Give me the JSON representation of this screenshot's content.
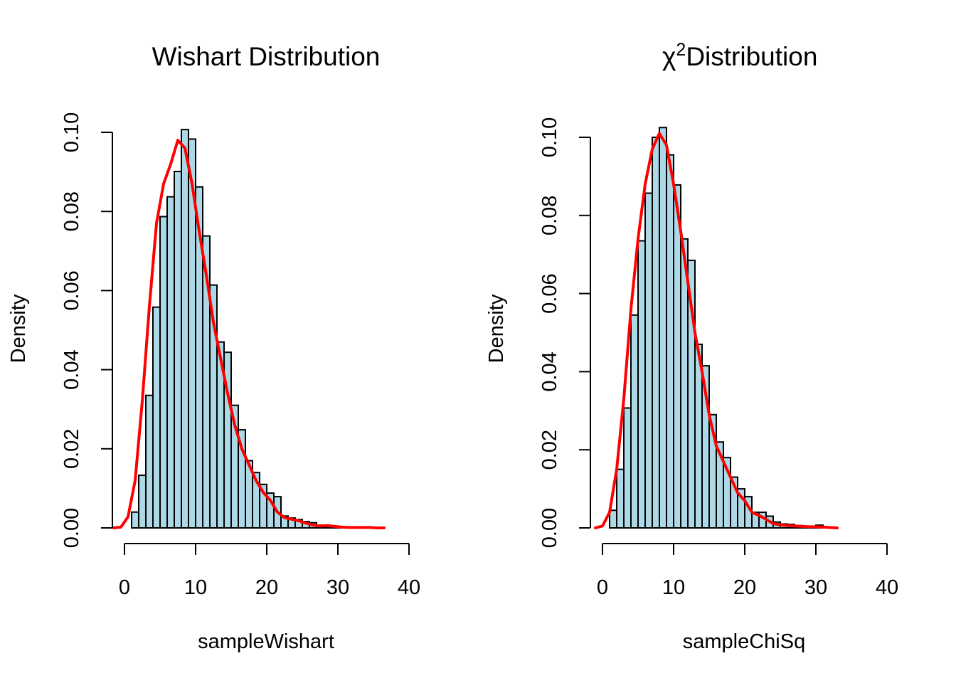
{
  "chart_data": [
    {
      "type": "bar",
      "title": "Wishart Distribution",
      "title_parts": [],
      "xlabel": "sampleWishart",
      "ylabel": "Density",
      "bin_width": 1,
      "bins_start": 0,
      "values": [
        0.0,
        0.004,
        0.0133,
        0.0335,
        0.0558,
        0.0787,
        0.0837,
        0.0901,
        0.1007,
        0.0983,
        0.0862,
        0.0738,
        0.0614,
        0.047,
        0.0444,
        0.031,
        0.0248,
        0.017,
        0.014,
        0.011,
        0.0088,
        0.0079,
        0.003,
        0.0025,
        0.0021,
        0.0016,
        0.0013,
        0.0007,
        0.0004,
        0.0003,
        0.0002,
        0.0001
      ],
      "density": {
        "color": "#ff0000",
        "x": [
          -1.5,
          -0.5,
          0.5,
          1.5,
          2.5,
          3.5,
          4.5,
          5.5,
          6.5,
          7.5,
          8.5,
          9.5,
          10.5,
          11.5,
          12.5,
          13.5,
          14.5,
          15.5,
          16.5,
          17.5,
          18.5,
          19.5,
          20.5,
          21.5,
          22.5,
          23.5,
          24.5,
          25.5,
          26.5,
          27.5,
          28.5,
          29.5,
          30.5,
          31.5,
          32.5,
          33.5,
          34.5,
          35.5,
          36.5
        ],
        "y": [
          0.0,
          0.0002,
          0.0028,
          0.012,
          0.032,
          0.056,
          0.077,
          0.087,
          0.092,
          0.098,
          0.096,
          0.087,
          0.075,
          0.064,
          0.052,
          0.043,
          0.034,
          0.026,
          0.02,
          0.016,
          0.012,
          0.009,
          0.007,
          0.004,
          0.0026,
          0.0022,
          0.0018,
          0.0012,
          0.0007,
          0.0005,
          0.0006,
          0.0004,
          0.0002,
          0.0001,
          0.0001,
          0.0001,
          0.0001,
          0.0,
          0.0
        ]
      },
      "xlim": [
        -1.5,
        36.5
      ],
      "ylim": [
        0,
        0.1
      ],
      "xticks": [
        0,
        10,
        20,
        30,
        40
      ],
      "yticks": [
        "0.00",
        "0.02",
        "0.04",
        "0.06",
        "0.08",
        "0.10"
      ],
      "bar_color": "#add8e6",
      "grid": false
    },
    {
      "type": "bar",
      "title": "Distribution",
      "title_parts": [
        "χ",
        "2"
      ],
      "xlabel": "sampleChiSq",
      "ylabel": "Density",
      "bin_width": 1,
      "bins_start": 0,
      "values": [
        0.0,
        0.0045,
        0.015,
        0.0307,
        0.0545,
        0.0735,
        0.0857,
        0.1,
        0.1025,
        0.0955,
        0.0878,
        0.074,
        0.0685,
        0.047,
        0.0415,
        0.029,
        0.022,
        0.018,
        0.013,
        0.01,
        0.008,
        0.004,
        0.004,
        0.003,
        0.0015,
        0.001,
        0.0009,
        0.0006,
        0.0004,
        0.0004,
        0.0007
      ],
      "density": {
        "color": "#ff0000",
        "x": [
          -1.0,
          0.0,
          1.0,
          2.0,
          3.0,
          4.0,
          5.0,
          6.0,
          7.0,
          8.0,
          9.0,
          10.0,
          11.0,
          12.0,
          13.0,
          14.0,
          15.0,
          16.0,
          17.0,
          18.0,
          19.0,
          20.0,
          21.0,
          22.0,
          23.0,
          24.0,
          25.0,
          26.0,
          27.0,
          28.0,
          29.0,
          30.0,
          31.0,
          32.0,
          33.0
        ],
        "y": [
          0.0,
          0.0005,
          0.004,
          0.015,
          0.033,
          0.056,
          0.074,
          0.088,
          0.097,
          0.101,
          0.098,
          0.088,
          0.076,
          0.063,
          0.05,
          0.04,
          0.029,
          0.021,
          0.017,
          0.013,
          0.009,
          0.007,
          0.004,
          0.0032,
          0.0022,
          0.0011,
          0.0008,
          0.0006,
          0.0005,
          0.0004,
          0.0003,
          0.0003,
          0.0002,
          0.0001,
          0.0
        ]
      },
      "xlim": [
        -1.0,
        33.0
      ],
      "ylim": [
        0,
        0.1
      ],
      "xticks": [
        0,
        10,
        20,
        30,
        40
      ],
      "yticks": [
        "0.00",
        "0.02",
        "0.04",
        "0.06",
        "0.08",
        "0.10"
      ],
      "bar_color": "#add8e6",
      "grid": false
    }
  ]
}
